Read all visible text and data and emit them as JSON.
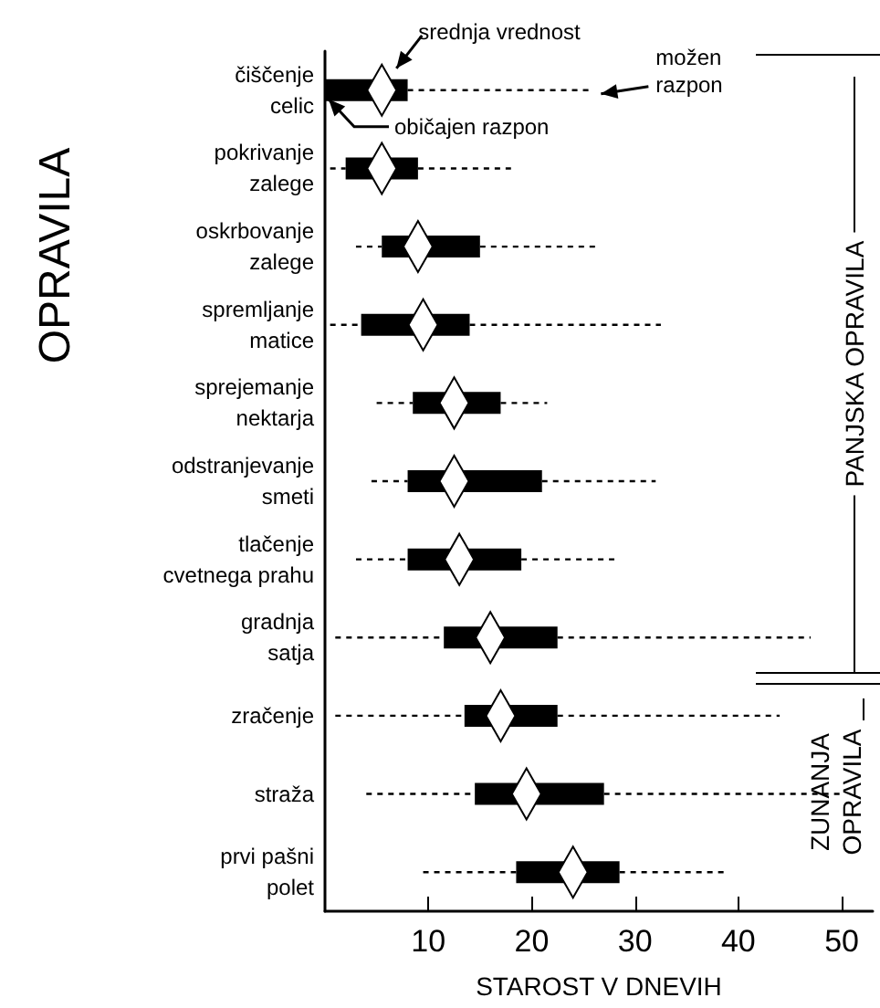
{
  "chart_data": {
    "type": "box",
    "orientation": "horizontal",
    "color": "#000000",
    "categories": [
      "čiščenje\ncelic",
      "pokrivanje\nzalege",
      "oskrbovanje\nzalege",
      "spremljanje\nmatice",
      "sprejemanje\nnektarja",
      "odstranjevanje\nsmeti",
      "tlačenje\ncvetnega prahu",
      "gradnja\nsatja",
      "zračenje",
      "straža",
      "prvi pašni\npolet"
    ],
    "boxes": [
      {
        "low": 0,
        "q1": 0,
        "q3": 8,
        "high": 26,
        "mean": 5.5
      },
      {
        "low": 0.5,
        "q1": 2,
        "q3": 9,
        "high": 18,
        "mean": 5.5
      },
      {
        "low": 3,
        "q1": 5.5,
        "q3": 15,
        "high": 26.5,
        "mean": 9
      },
      {
        "low": 0.5,
        "q1": 3.5,
        "q3": 14,
        "high": 32.5,
        "mean": 9.5
      },
      {
        "low": 5,
        "q1": 8.5,
        "q3": 17,
        "high": 21.5,
        "mean": 12.5
      },
      {
        "low": 4.5,
        "q1": 8,
        "q3": 21,
        "high": 32,
        "mean": 12.5
      },
      {
        "low": 3,
        "q1": 8,
        "q3": 19,
        "high": 28,
        "mean": 13
      },
      {
        "low": 1,
        "q1": 11.5,
        "q3": 22.5,
        "high": 47,
        "mean": 16
      },
      {
        "low": 1,
        "q1": 13.5,
        "q3": 22.5,
        "high": 44,
        "mean": 17
      },
      {
        "low": 4,
        "q1": 14.5,
        "q3": 27,
        "high": 50,
        "mean": 19.5
      },
      {
        "low": 9.5,
        "q1": 18.5,
        "q3": 28.5,
        "high": 39,
        "mean": 24
      }
    ],
    "xlim": [
      0,
      53
    ],
    "xticks": [
      10,
      20,
      30,
      40,
      50
    ],
    "xlabel": "STAROST V DNEVIH",
    "ylabel": "OPRAVILA",
    "annotations": [
      "srednja vrednost",
      "običajen razpon",
      "možen\nrazpon",
      "PANJSKA OPRAVILA",
      "ZUNANJA\nOPRAVILA"
    ]
  }
}
